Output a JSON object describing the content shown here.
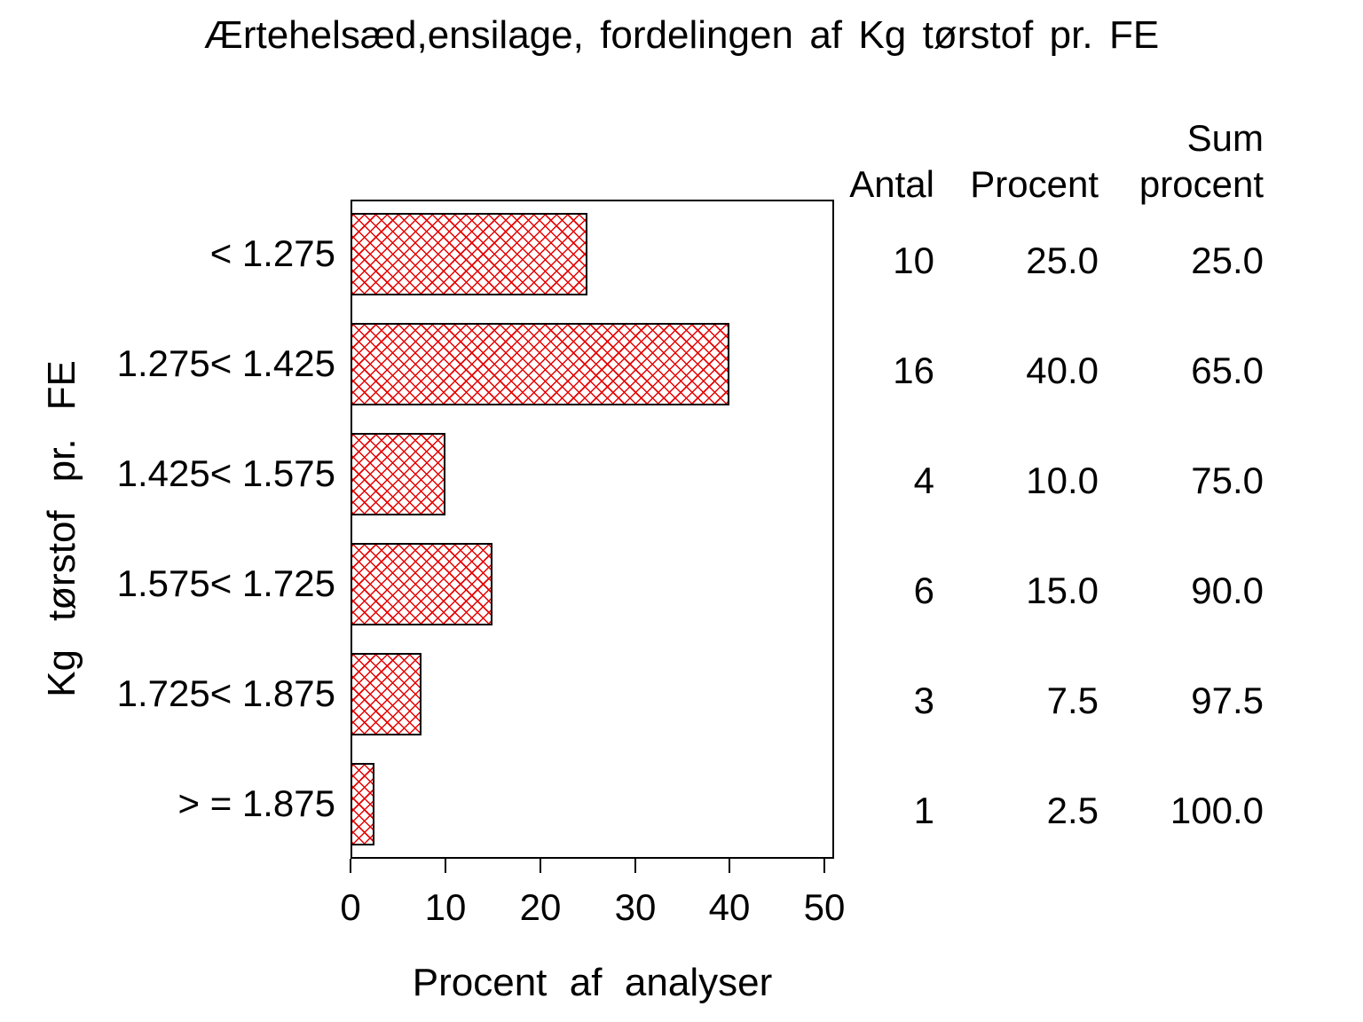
{
  "chart_data": {
    "type": "bar",
    "orientation": "horizontal",
    "title": "Ærtehelsæd,ensilage, fordelingen af Kg tørstof pr. FE",
    "xlabel": "Procent af analyser",
    "ylabel": "Kg tørstof pr. FE",
    "categories": [
      "< 1.275",
      "1.275< 1.425",
      "1.425< 1.575",
      "1.575< 1.725",
      "1.725< 1.875",
      "> = 1.875"
    ],
    "series": [
      {
        "name": "Antal",
        "values": [
          10,
          16,
          4,
          6,
          3,
          1
        ]
      },
      {
        "name": "Procent",
        "values": [
          25.0,
          40.0,
          10.0,
          15.0,
          7.5,
          2.5
        ]
      },
      {
        "name": "Sum procent",
        "values": [
          25.0,
          65.0,
          75.0,
          90.0,
          97.5,
          100.0
        ]
      }
    ],
    "plotted_series": "Procent",
    "xticks": [
      0,
      10,
      20,
      30,
      40,
      50
    ],
    "xlim": [
      0,
      51
    ],
    "grid": false,
    "legend": false,
    "bar_pattern": "crosshatch",
    "bar_pattern_color": "#e60000",
    "bar_border_color": "#000000",
    "frame_color": "#000000",
    "background_color": "#ffffff"
  },
  "table": {
    "headers": [
      [
        "",
        "Antal"
      ],
      [
        "",
        "Procent"
      ],
      [
        "Sum",
        "procent"
      ]
    ],
    "rows": [
      [
        "10",
        "25.0",
        "25.0"
      ],
      [
        "16",
        "40.0",
        "65.0"
      ],
      [
        "4",
        "10.0",
        "75.0"
      ],
      [
        "6",
        "15.0",
        "90.0"
      ],
      [
        "3",
        "7.5",
        "97.5"
      ],
      [
        "1",
        "2.5",
        "100.0"
      ]
    ]
  }
}
